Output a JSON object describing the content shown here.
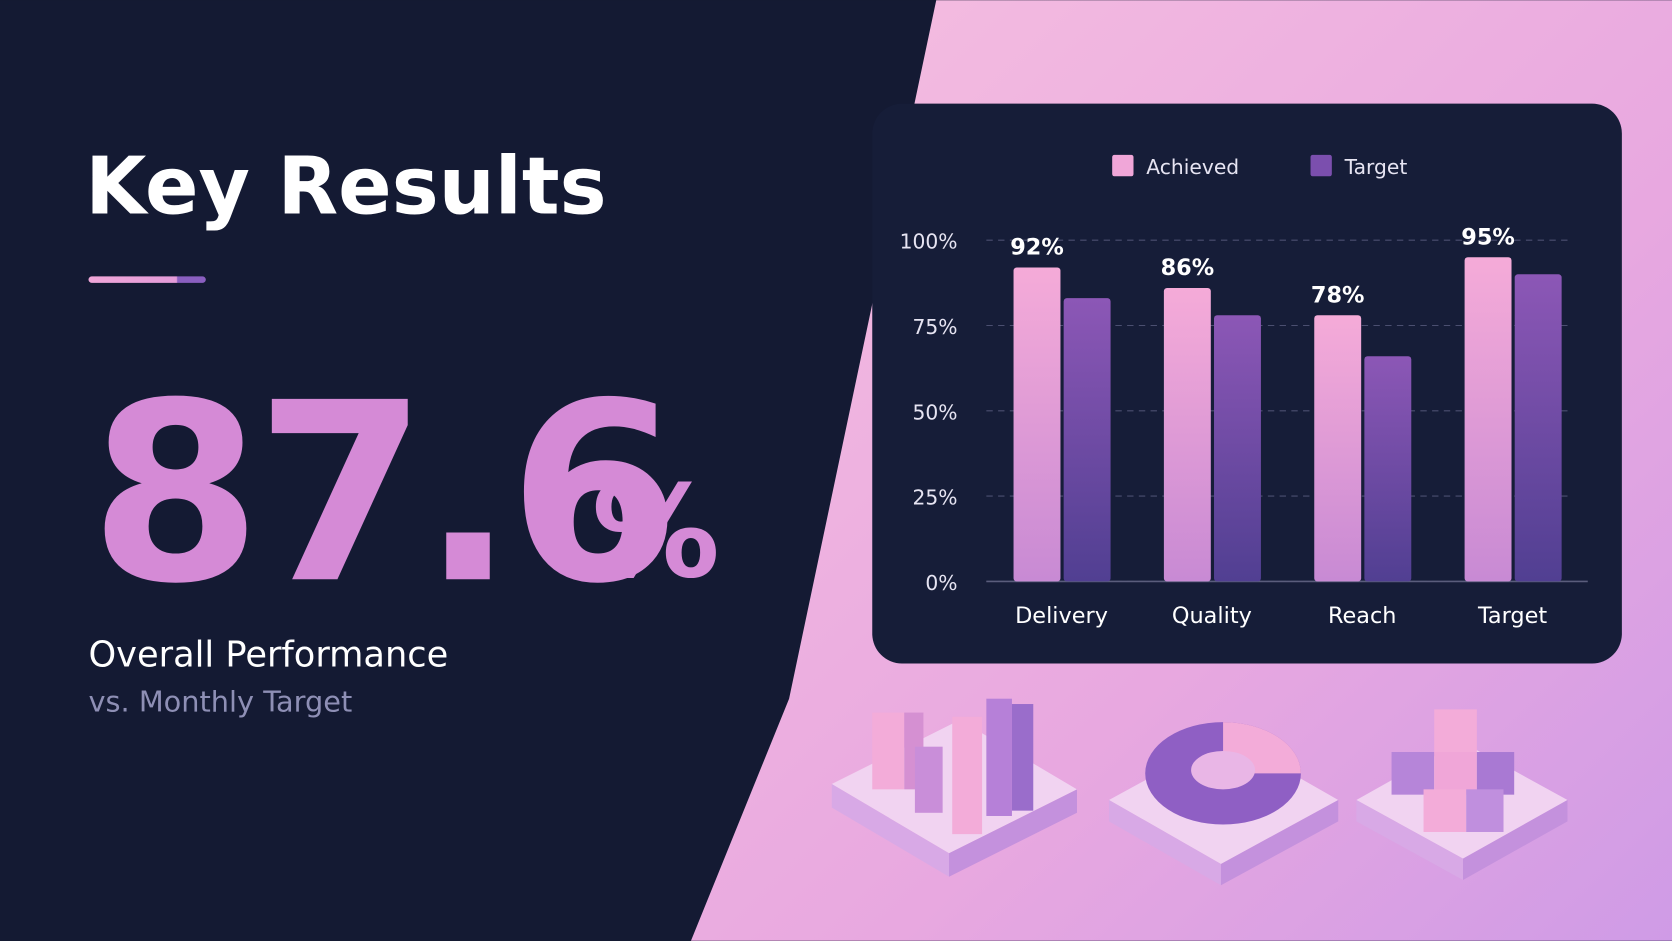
{
  "header": {
    "title": "Key Results"
  },
  "kpi": {
    "value": 87.6,
    "unit": "%",
    "label": "Overall Performance",
    "sublabel": "vs. Monthly Target"
  },
  "chart_data": {
    "type": "bar",
    "categories": [
      "Delivery",
      "Quality",
      "Reach",
      "Target"
    ],
    "series": [
      {
        "name": "Achieved",
        "color": "#f0a6d8",
        "values": [
          92,
          86,
          78,
          95
        ],
        "value_labels": [
          "92%",
          "86%",
          "78%",
          "95%"
        ]
      },
      {
        "name": "Target",
        "color": "#7b4fae",
        "values": [
          83,
          78,
          66,
          90
        ]
      }
    ],
    "ylim": [
      0,
      100
    ],
    "yticks": [
      {
        "value": 0,
        "label": "0%"
      },
      {
        "value": 25,
        "label": "25%"
      },
      {
        "value": 50,
        "label": "50%"
      },
      {
        "value": 75,
        "label": "75%"
      },
      {
        "value": 100,
        "label": "100%"
      }
    ],
    "grid": true,
    "legend": "top"
  }
}
